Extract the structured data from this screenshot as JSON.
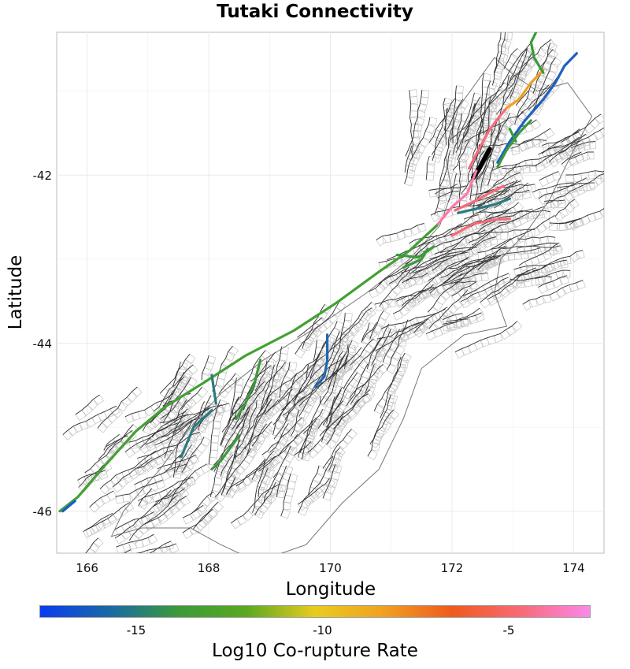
{
  "title": "Tutaki Connectivity",
  "x_axis": {
    "label": "Longitude",
    "ticks": [
      166,
      168,
      170,
      172,
      174
    ],
    "range": [
      165.5,
      174.5
    ]
  },
  "y_axis": {
    "label": "Latitude",
    "ticks": [
      -42,
      -44,
      -46
    ],
    "range": [
      -46.5,
      -40.3
    ]
  },
  "legend": {
    "title": "Log10 Co-rupture Rate",
    "ticks": [
      -15,
      -10,
      -5
    ],
    "range": [
      -17.6,
      -2.8
    ],
    "colors": [
      "#0a3cf0",
      "#1a68a6",
      "#3a9a3a",
      "#5aa820",
      "#e8cc1f",
      "#f0a020",
      "#ef5a1e",
      "#f86a78",
      "#fb88ea"
    ]
  },
  "colors": {
    "background": "#ffffff",
    "panel_border": "#bbbbbb",
    "grid": "#ebebeb",
    "coast": "#777777",
    "fault": "#333333",
    "patch": "#c4c4c4"
  },
  "highlighted_ruptures": [
    {
      "log10_rate": -2.8,
      "color": "#000000",
      "points": [
        [
          172.35,
          -42.03
        ],
        [
          172.45,
          -41.92
        ],
        [
          172.62,
          -41.69
        ]
      ]
    },
    {
      "log10_rate": -4.5,
      "color": "#f86a78",
      "points": [
        [
          172.28,
          -41.92
        ],
        [
          172.45,
          -41.68
        ],
        [
          172.6,
          -41.48
        ],
        [
          172.75,
          -41.33
        ],
        [
          172.9,
          -41.2
        ]
      ]
    },
    {
      "log10_rate": -10.8,
      "color": "#f0a020",
      "points": [
        [
          172.9,
          -41.2
        ],
        [
          173.1,
          -41.1
        ],
        [
          173.3,
          -40.9
        ],
        [
          173.5,
          -40.75
        ]
      ]
    },
    {
      "log10_rate": -16.3,
      "color": "#1f5fc0",
      "points": [
        [
          172.75,
          -41.85
        ],
        [
          172.95,
          -41.6
        ],
        [
          173.2,
          -41.35
        ],
        [
          173.5,
          -41.1
        ],
        [
          173.7,
          -40.9
        ],
        [
          173.85,
          -40.7
        ],
        [
          174.05,
          -40.55
        ]
      ]
    },
    {
      "log10_rate": -14.8,
      "color": "#3a9a3a",
      "points": [
        [
          173.5,
          -40.78
        ],
        [
          173.35,
          -40.6
        ],
        [
          173.3,
          -40.42
        ],
        [
          173.45,
          -40.2
        ]
      ]
    },
    {
      "log10_rate": -3.8,
      "color": "#fb78aa",
      "points": [
        [
          171.75,
          -42.6
        ],
        [
          172.0,
          -42.38
        ],
        [
          172.25,
          -42.22
        ],
        [
          172.4,
          -41.95
        ]
      ]
    },
    {
      "log10_rate": -4.2,
      "color": "#f86a78",
      "points": [
        [
          172.05,
          -42.42
        ],
        [
          172.4,
          -42.3
        ],
        [
          172.65,
          -42.2
        ],
        [
          172.85,
          -42.13
        ]
      ]
    },
    {
      "log10_rate": -5.0,
      "color": "#f86a78",
      "points": [
        [
          172.0,
          -42.72
        ],
        [
          172.35,
          -42.58
        ],
        [
          172.7,
          -42.53
        ],
        [
          172.95,
          -42.52
        ]
      ]
    },
    {
      "log10_rate": -15.8,
      "color": "#2a7a82",
      "points": [
        [
          172.1,
          -42.45
        ],
        [
          172.4,
          -42.4
        ],
        [
          172.7,
          -42.35
        ],
        [
          172.95,
          -42.28
        ]
      ]
    },
    {
      "log10_rate": -14.8,
      "color": "#3a9a3a",
      "points": [
        [
          172.75,
          -41.9
        ],
        [
          172.9,
          -41.7
        ],
        [
          173.1,
          -41.5
        ],
        [
          173.3,
          -41.35
        ]
      ]
    },
    {
      "log10_rate": -14.8,
      "color": "#3a9a3a",
      "points": [
        [
          172.95,
          -41.45
        ],
        [
          173.05,
          -41.6
        ]
      ]
    },
    {
      "log10_rate": -15.0,
      "color": "#43a033",
      "points": [
        [
          165.55,
          -46.0
        ],
        [
          165.85,
          -45.83
        ],
        [
          166.3,
          -45.45
        ],
        [
          166.8,
          -45.05
        ],
        [
          167.3,
          -44.75
        ],
        [
          167.9,
          -44.48
        ],
        [
          168.6,
          -44.15
        ],
        [
          169.4,
          -43.85
        ],
        [
          170.1,
          -43.52
        ],
        [
          170.8,
          -43.15
        ],
        [
          171.3,
          -42.9
        ],
        [
          171.75,
          -42.6
        ]
      ]
    },
    {
      "log10_rate": -15.0,
      "color": "#3a9a3a",
      "points": [
        [
          171.1,
          -42.95
        ],
        [
          171.45,
          -42.98
        ],
        [
          171.7,
          -42.85
        ]
      ]
    },
    {
      "log10_rate": -15.0,
      "color": "#3a9a3a",
      "points": [
        [
          171.2,
          -43.1
        ],
        [
          171.5,
          -43.0
        ],
        [
          171.6,
          -42.88
        ]
      ]
    },
    {
      "log10_rate": -15.0,
      "color": "#3a9a3a",
      "points": [
        [
          168.45,
          -44.9
        ],
        [
          168.6,
          -44.72
        ],
        [
          168.75,
          -44.48
        ],
        [
          168.85,
          -44.2
        ]
      ]
    },
    {
      "log10_rate": -15.0,
      "color": "#3a9a3a",
      "points": [
        [
          168.05,
          -45.5
        ],
        [
          168.2,
          -45.4
        ],
        [
          168.5,
          -45.1
        ]
      ]
    },
    {
      "log10_rate": -15.6,
      "color": "#2a7a82",
      "points": [
        [
          167.55,
          -45.35
        ],
        [
          167.75,
          -45.0
        ],
        [
          168.05,
          -44.8
        ]
      ]
    },
    {
      "log10_rate": -15.8,
      "color": "#2a7a82",
      "points": [
        [
          168.05,
          -44.38
        ],
        [
          168.12,
          -44.72
        ]
      ]
    },
    {
      "log10_rate": -16.3,
      "color": "#1a68b6",
      "points": [
        [
          169.95,
          -43.9
        ],
        [
          169.95,
          -44.2
        ],
        [
          169.9,
          -44.4
        ],
        [
          169.75,
          -44.52
        ]
      ]
    },
    {
      "log10_rate": -16.8,
      "color": "#1a5ad0",
      "points": [
        [
          165.6,
          -46.0
        ],
        [
          165.8,
          -45.88
        ]
      ]
    }
  ]
}
